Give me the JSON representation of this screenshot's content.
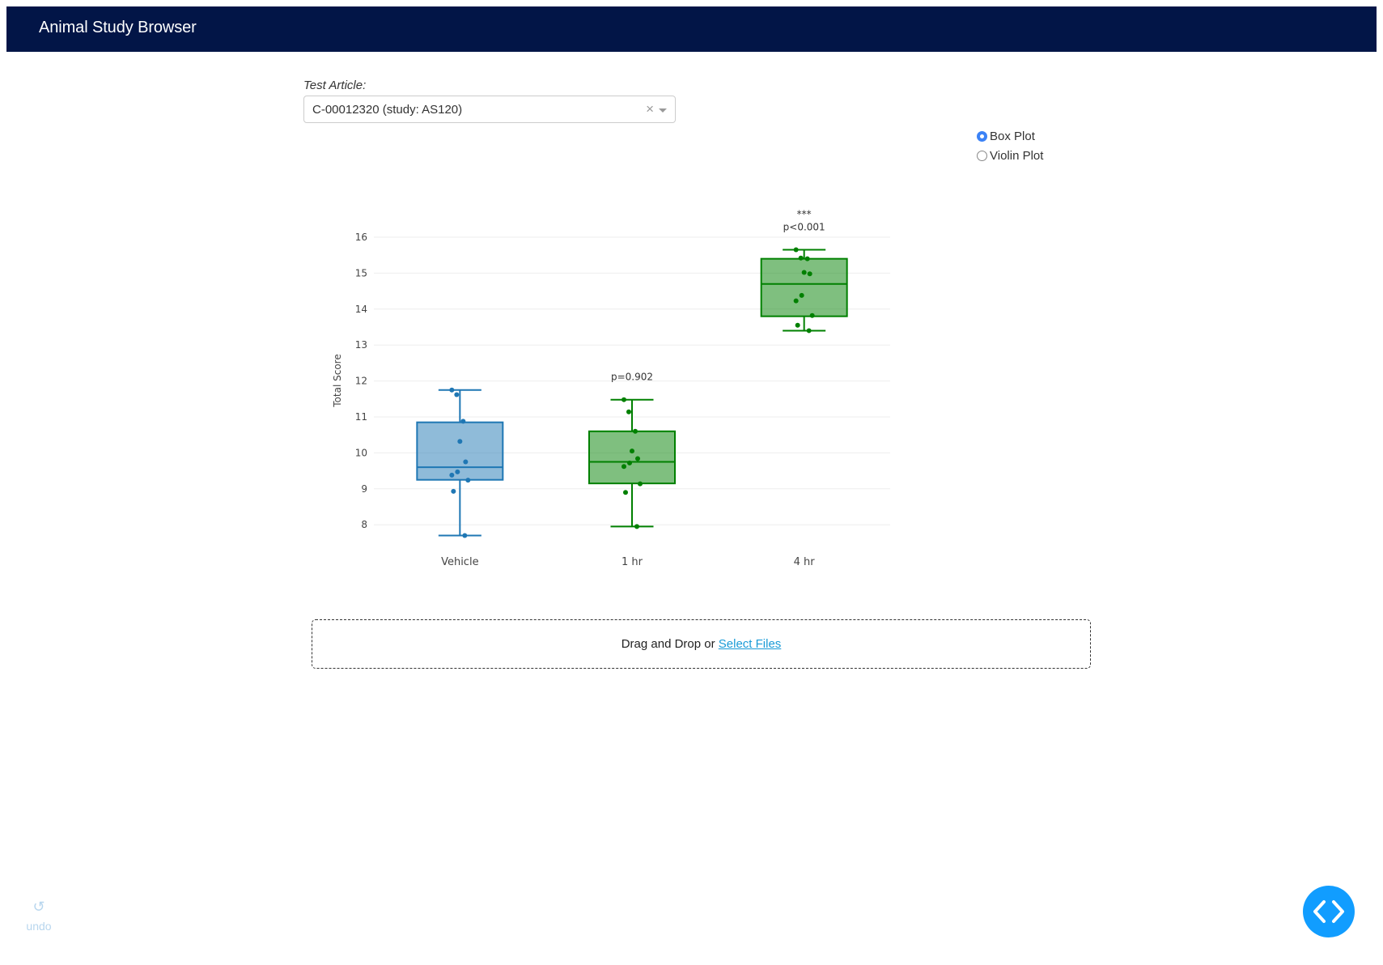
{
  "header": {
    "title": "Animal Study Browser"
  },
  "filter": {
    "label": "Test Article:",
    "selected": "C-00012320 (study: AS120)",
    "clear_symbol": "×"
  },
  "plot_type": {
    "options": [
      {
        "label": "Box Plot",
        "checked": true
      },
      {
        "label": "Violin Plot",
        "checked": false
      }
    ]
  },
  "upload": {
    "text": "Drag and Drop or ",
    "link": "Select Files"
  },
  "undo": {
    "label": "undo"
  },
  "chart_data": {
    "type": "box",
    "ylabel": "Total Score",
    "ylim": [
      7.5,
      16.4
    ],
    "yticks": [
      8,
      9,
      10,
      11,
      12,
      13,
      14,
      15,
      16
    ],
    "grid": true,
    "categories": [
      "Vehicle",
      "1 hr",
      "4 hr"
    ],
    "series": [
      {
        "category": "Vehicle",
        "color": "#1f77b4",
        "min": 7.7,
        "q1": 9.25,
        "median": 9.6,
        "q3": 10.85,
        "max": 11.75,
        "points": [
          11.75,
          11.62,
          10.88,
          10.32,
          9.75,
          9.47,
          9.38,
          9.24,
          8.93,
          7.7
        ],
        "annotation": []
      },
      {
        "category": "1 hr",
        "color": "#008000",
        "min": 7.95,
        "q1": 9.15,
        "median": 9.75,
        "q3": 10.6,
        "max": 11.48,
        "points": [
          11.48,
          11.14,
          10.6,
          10.05,
          9.84,
          9.72,
          9.62,
          9.14,
          8.9,
          7.95
        ],
        "annotation": [
          "p=0.902"
        ]
      },
      {
        "category": "4 hr",
        "color": "#008000",
        "min": 13.4,
        "q1": 13.8,
        "median": 14.7,
        "q3": 15.4,
        "max": 15.65,
        "points": [
          15.65,
          15.42,
          15.4,
          15.02,
          14.98,
          14.38,
          14.23,
          13.82,
          13.55,
          13.4
        ],
        "annotation": [
          "***",
          "p<0.001"
        ]
      }
    ]
  }
}
